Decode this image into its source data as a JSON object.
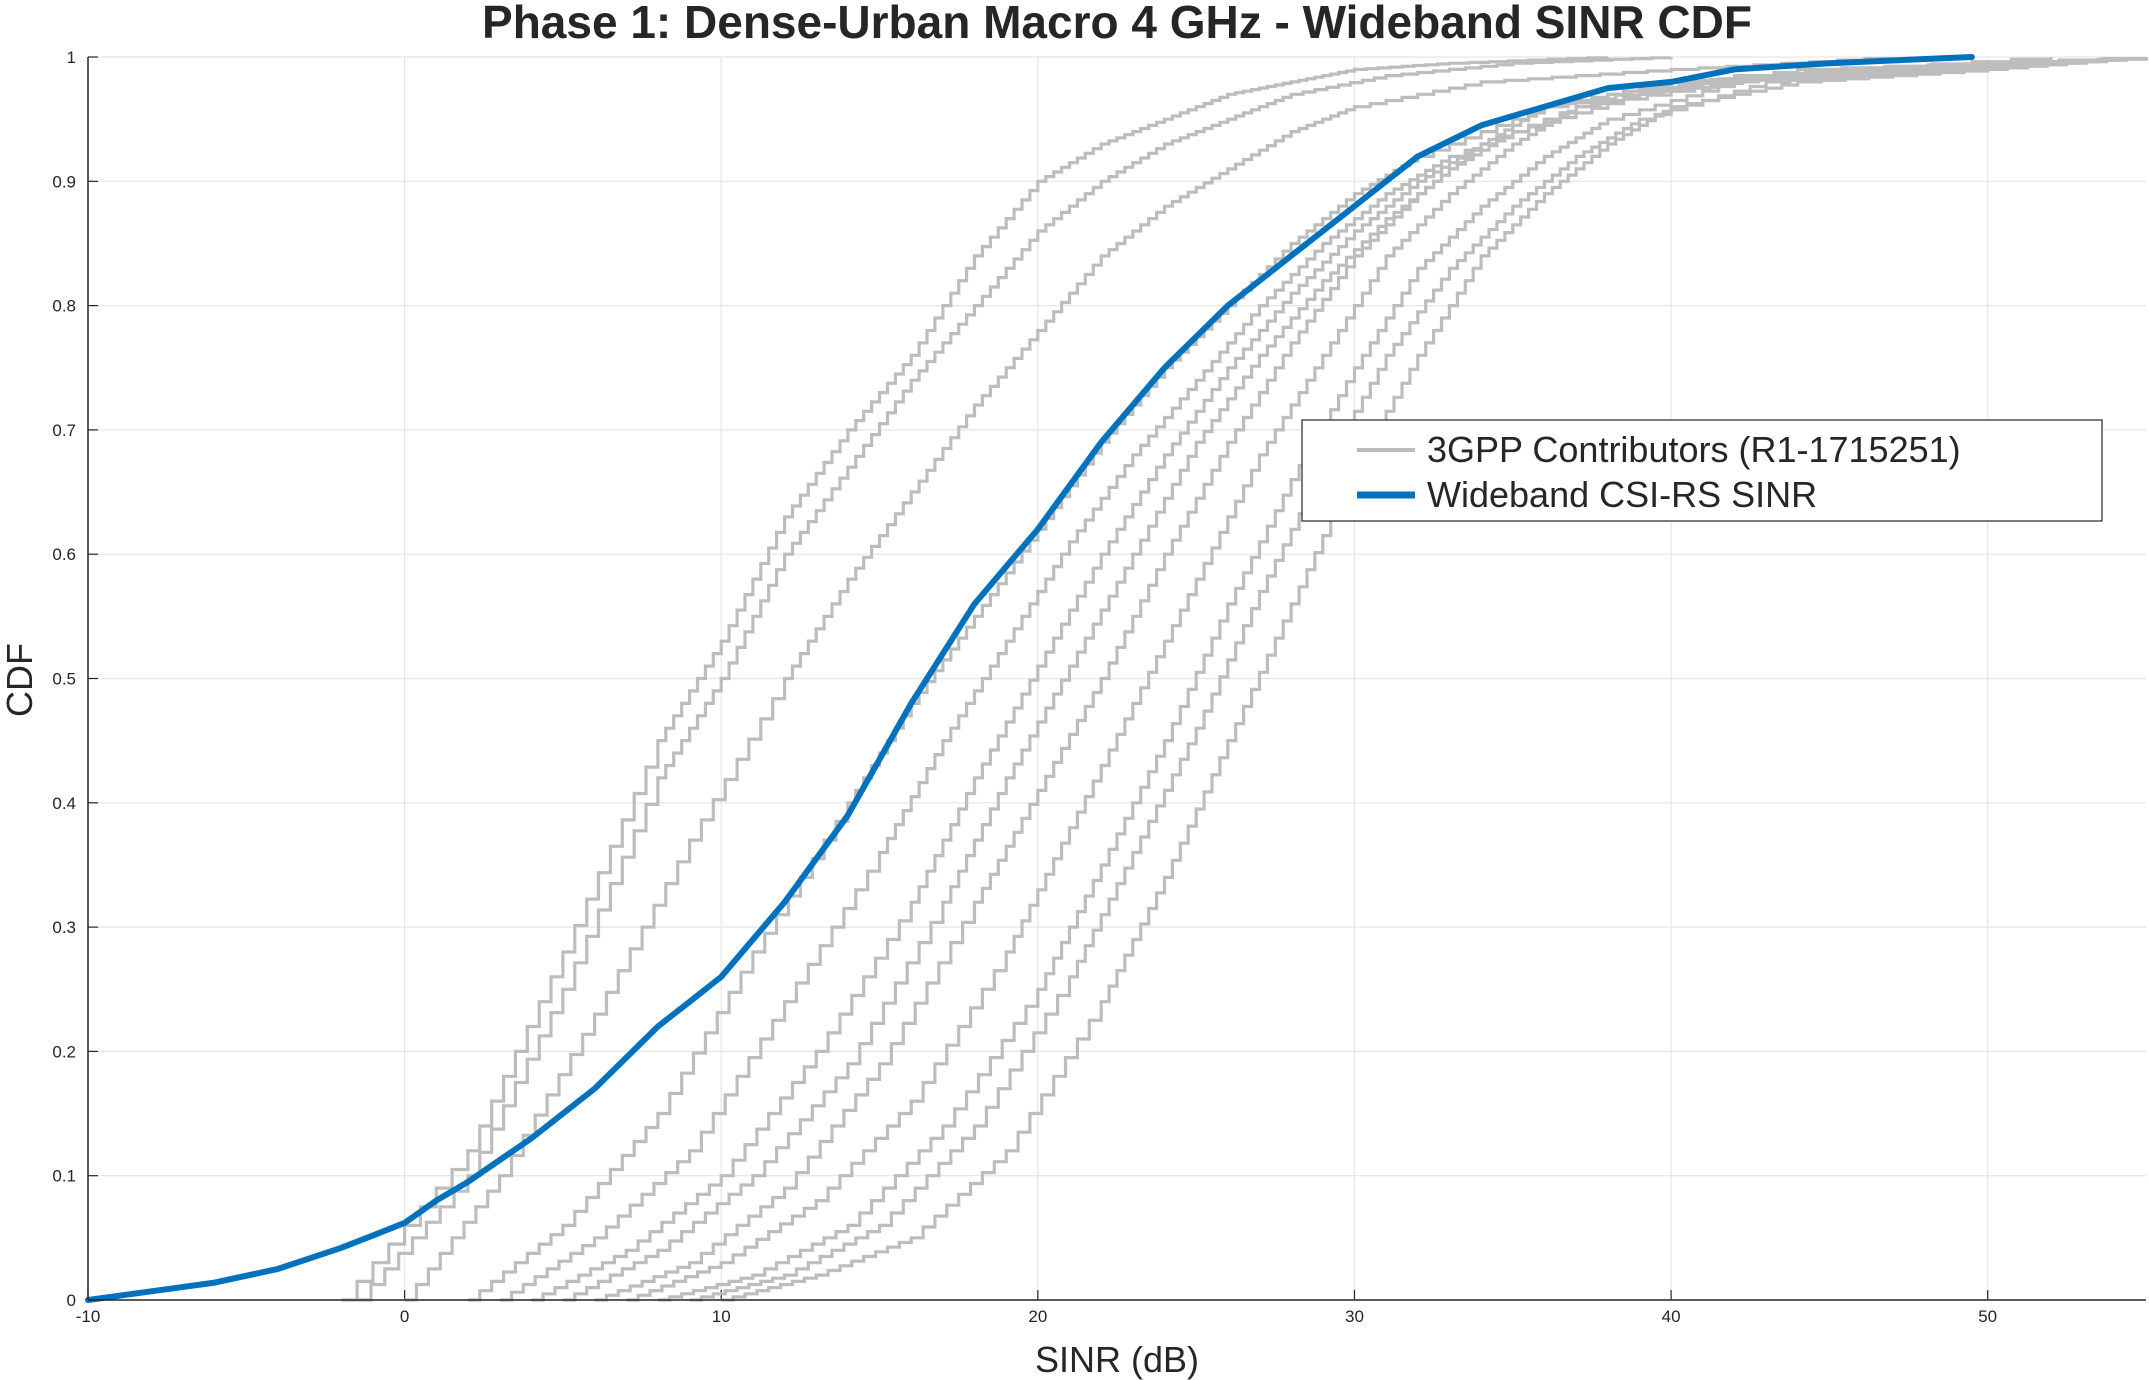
{
  "chart_data": {
    "type": "line",
    "title": "Phase 1: Dense-Urban Macro 4 GHz - Wideband SINR CDF",
    "xlabel": "SINR (dB)",
    "ylabel": "CDF",
    "xlim": [
      -10,
      55
    ],
    "ylim": [
      0,
      1
    ],
    "xticks": [
      "-10",
      "0",
      "10",
      "20",
      "30",
      "40",
      "50"
    ],
    "yticks": [
      "0",
      "0.1",
      "0.2",
      "0.3",
      "0.4",
      "0.5",
      "0.6",
      "0.7",
      "0.8",
      "0.9",
      "1"
    ],
    "grid": true,
    "legend_position": "center-right",
    "colors": {
      "contributors": "#bdbdbd",
      "wideband": "#0072bd",
      "grid": "#e6e6e6",
      "axis": "#262626"
    },
    "series": [
      {
        "name": "Wideband CSI-RS SINR",
        "x": [
          -10,
          -8,
          -6,
          -4,
          -2,
          -1,
          0,
          1,
          2,
          4,
          6,
          8,
          9,
          10,
          12,
          14,
          16,
          18,
          20,
          22,
          24,
          26,
          28,
          30,
          32,
          34,
          36,
          38,
          40,
          42,
          45,
          49.5
        ],
        "y": [
          0.0,
          0.007,
          0.014,
          0.025,
          0.042,
          0.052,
          0.062,
          0.08,
          0.095,
          0.13,
          0.17,
          0.22,
          0.24,
          0.26,
          0.32,
          0.39,
          0.48,
          0.56,
          0.62,
          0.69,
          0.75,
          0.8,
          0.84,
          0.88,
          0.92,
          0.945,
          0.96,
          0.975,
          0.98,
          0.99,
          0.995,
          1.0
        ]
      }
    ],
    "contributor_legend": "3GPP Contributors (R1-1715251)",
    "contributor_curves": [
      {
        "x": [
          -2,
          2,
          5,
          8,
          10,
          12,
          14,
          16,
          18,
          20,
          22,
          24,
          26,
          28,
          30,
          33,
          38
        ],
        "y": [
          0,
          0.12,
          0.28,
          0.45,
          0.53,
          0.63,
          0.7,
          0.76,
          0.84,
          0.9,
          0.93,
          0.95,
          0.97,
          0.98,
          0.99,
          0.995,
          1.0
        ]
      },
      {
        "x": [
          -1.5,
          2,
          5,
          8,
          10,
          12,
          14,
          16,
          18,
          20,
          22,
          24,
          26,
          28,
          31,
          35,
          40
        ],
        "y": [
          0,
          0.1,
          0.25,
          0.42,
          0.5,
          0.6,
          0.67,
          0.74,
          0.8,
          0.86,
          0.9,
          0.93,
          0.95,
          0.97,
          0.985,
          0.995,
          1.0
        ]
      },
      {
        "x": [
          0,
          3,
          6,
          9,
          12,
          14,
          16,
          18,
          20,
          22,
          24,
          26,
          28,
          30,
          34,
          40,
          47
        ],
        "y": [
          0,
          0.1,
          0.23,
          0.37,
          0.5,
          0.58,
          0.65,
          0.72,
          0.78,
          0.84,
          0.88,
          0.91,
          0.94,
          0.96,
          0.98,
          0.99,
          1.0
        ]
      },
      {
        "x": [
          2,
          5,
          8,
          11,
          14,
          16,
          18,
          20,
          22,
          24,
          26,
          28,
          30,
          32,
          36,
          42,
          52
        ],
        "y": [
          0,
          0.06,
          0.15,
          0.28,
          0.4,
          0.48,
          0.55,
          0.62,
          0.69,
          0.75,
          0.8,
          0.85,
          0.89,
          0.92,
          0.96,
          0.985,
          1.0
        ]
      },
      {
        "x": [
          3,
          6,
          9,
          12,
          15,
          17,
          19,
          21,
          23,
          25,
          27,
          29,
          31,
          33,
          37,
          43,
          55
        ],
        "y": [
          0,
          0.05,
          0.12,
          0.24,
          0.36,
          0.45,
          0.53,
          0.61,
          0.68,
          0.74,
          0.8,
          0.85,
          0.89,
          0.92,
          0.96,
          0.985,
          1.0
        ]
      },
      {
        "x": [
          4,
          7,
          10,
          13,
          16,
          18,
          20,
          22,
          24,
          26,
          28,
          30,
          32,
          34,
          38,
          44,
          55
        ],
        "y": [
          0,
          0.04,
          0.1,
          0.2,
          0.32,
          0.42,
          0.51,
          0.6,
          0.68,
          0.75,
          0.81,
          0.86,
          0.9,
          0.93,
          0.97,
          0.99,
          1.0
        ]
      },
      {
        "x": [
          5,
          8,
          11,
          14,
          17,
          19,
          21,
          23,
          25,
          27,
          29,
          31,
          33,
          35,
          39,
          45,
          55
        ],
        "y": [
          0,
          0.04,
          0.1,
          0.19,
          0.32,
          0.42,
          0.51,
          0.6,
          0.69,
          0.76,
          0.82,
          0.87,
          0.91,
          0.94,
          0.97,
          0.99,
          1.0
        ]
      },
      {
        "x": [
          6,
          9,
          12,
          15,
          18,
          20,
          22,
          24,
          26,
          28,
          30,
          32,
          34,
          36,
          40,
          46,
          55
        ],
        "y": [
          0,
          0.03,
          0.09,
          0.19,
          0.32,
          0.41,
          0.5,
          0.6,
          0.69,
          0.77,
          0.84,
          0.89,
          0.93,
          0.96,
          0.98,
          0.99,
          1.0
        ]
      },
      {
        "x": [
          7,
          10,
          13,
          16,
          19,
          21,
          23,
          25,
          27,
          29,
          31,
          33,
          35,
          37,
          41,
          47,
          55
        ],
        "y": [
          0,
          0.03,
          0.08,
          0.16,
          0.28,
          0.38,
          0.48,
          0.58,
          0.68,
          0.76,
          0.84,
          0.89,
          0.93,
          0.96,
          0.98,
          0.99,
          1.0
        ]
      },
      {
        "x": [
          8,
          11,
          14,
          17,
          20,
          22,
          24,
          26,
          28,
          30,
          32,
          34,
          36,
          38,
          42,
          48,
          55
        ],
        "y": [
          0,
          0.02,
          0.06,
          0.14,
          0.25,
          0.35,
          0.45,
          0.56,
          0.66,
          0.75,
          0.83,
          0.88,
          0.92,
          0.95,
          0.98,
          0.99,
          1.0
        ]
      },
      {
        "x": [
          9,
          12,
          15,
          18,
          21,
          23,
          25,
          27,
          29,
          31,
          33,
          35,
          37,
          39,
          43,
          49,
          55
        ],
        "y": [
          0,
          0.02,
          0.06,
          0.14,
          0.26,
          0.36,
          0.46,
          0.57,
          0.67,
          0.76,
          0.83,
          0.88,
          0.92,
          0.95,
          0.98,
          0.99,
          1.0
        ]
      },
      {
        "x": [
          10,
          13,
          16,
          19,
          22,
          24,
          26,
          28,
          30,
          32,
          34,
          36,
          38,
          40,
          44,
          50,
          55
        ],
        "y": [
          0,
          0.02,
          0.05,
          0.12,
          0.24,
          0.34,
          0.45,
          0.56,
          0.67,
          0.76,
          0.84,
          0.89,
          0.93,
          0.96,
          0.98,
          0.99,
          1.0
        ]
      }
    ]
  }
}
